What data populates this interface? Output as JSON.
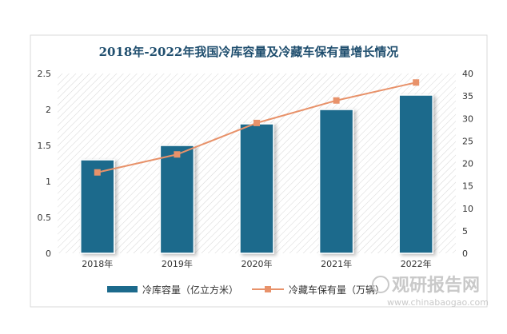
{
  "chart_data": {
    "type": "bar+line",
    "title": "2018年-2022年我国冷库容量及冷藏车保有量增长情况",
    "categories": [
      "2018年",
      "2019年",
      "2020年",
      "2021年",
      "2022年"
    ],
    "series": [
      {
        "name": "冷库容量（亿立方米）",
        "type": "bar",
        "axis": "left",
        "values": [
          1.3,
          1.5,
          1.8,
          2.0,
          2.2
        ]
      },
      {
        "name": "冷藏车保有量（万辆）",
        "type": "line",
        "axis": "right",
        "values": [
          18,
          22,
          29,
          34,
          38
        ]
      }
    ],
    "y_left": {
      "min": 0,
      "max": 2.5,
      "ticks": [
        "0",
        "0.5",
        "1",
        "1.5",
        "2",
        "2.5"
      ]
    },
    "y_right": {
      "min": 0,
      "max": 40,
      "ticks": [
        "0",
        "5",
        "10",
        "15",
        "20",
        "25",
        "30",
        "35",
        "40"
      ]
    },
    "legend_position": "bottom",
    "colors": {
      "bar": "#1c6a8c",
      "line": "#e8926a",
      "title": "#1f4e6e"
    }
  },
  "watermark": {
    "brand": "观研报告网",
    "url": "www.chinabaogao.com"
  }
}
